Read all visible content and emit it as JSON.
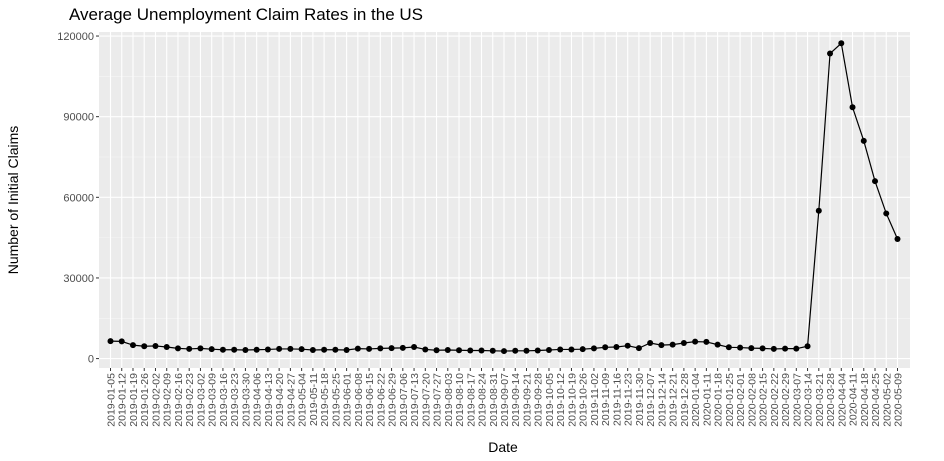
{
  "chart_data": {
    "type": "line",
    "title": "Average Unemployment Claim Rates in the US",
    "xlabel": "Date",
    "ylabel": "Number of Initial Claims",
    "ylim": [
      -3500,
      121500
    ],
    "yticks": [
      0,
      30000,
      60000,
      90000,
      120000
    ],
    "grid": true,
    "series": [
      {
        "x": [
          "2019-01-05",
          "2019-01-12",
          "2019-01-19",
          "2019-01-26",
          "2019-02-02",
          "2019-02-09",
          "2019-02-16",
          "2019-02-23",
          "2019-03-02",
          "2019-03-09",
          "2019-03-16",
          "2019-03-23",
          "2019-03-30",
          "2019-04-06",
          "2019-04-13",
          "2019-04-20",
          "2019-04-27",
          "2019-05-04",
          "2019-05-11",
          "2019-05-18",
          "2019-05-25",
          "2019-06-01",
          "2019-06-08",
          "2019-06-15",
          "2019-06-22",
          "2019-06-29",
          "2019-07-06",
          "2019-07-13",
          "2019-07-20",
          "2019-07-27",
          "2019-08-03",
          "2019-08-10",
          "2019-08-17",
          "2019-08-24",
          "2019-08-31",
          "2019-09-07",
          "2019-09-14",
          "2019-09-21",
          "2019-09-28",
          "2019-10-05",
          "2019-10-12",
          "2019-10-19",
          "2019-10-26",
          "2019-11-02",
          "2019-11-09",
          "2019-11-16",
          "2019-11-23",
          "2019-11-30",
          "2019-12-07",
          "2019-12-14",
          "2019-12-21",
          "2019-12-28",
          "2020-01-04",
          "2020-01-11",
          "2020-01-18",
          "2020-01-25",
          "2020-02-01",
          "2020-02-08",
          "2020-02-15",
          "2020-02-22",
          "2020-02-29",
          "2020-03-07",
          "2020-03-14",
          "2020-03-21",
          "2020-03-28",
          "2020-04-04",
          "2020-04-11",
          "2020-04-18",
          "2020-04-25",
          "2020-05-02",
          "2020-05-09"
        ],
        "values": [
          6500,
          6400,
          5000,
          4600,
          4700,
          4300,
          3800,
          3600,
          3800,
          3500,
          3300,
          3300,
          3200,
          3300,
          3400,
          3600,
          3600,
          3500,
          3200,
          3300,
          3300,
          3200,
          3700,
          3600,
          3800,
          3900,
          4000,
          4300,
          3400,
          3100,
          3200,
          3100,
          3000,
          3000,
          2900,
          2800,
          2900,
          2900,
          3000,
          3200,
          3400,
          3400,
          3500,
          3800,
          4200,
          4300,
          4800,
          3900,
          5800,
          5000,
          5200,
          5800,
          6300,
          6200,
          5200,
          4200,
          4100,
          3900,
          3800,
          3600,
          3700,
          3700,
          4600,
          55000,
          113500,
          117300,
          93500,
          81000,
          66000,
          54000,
          44500
        ]
      }
    ]
  }
}
